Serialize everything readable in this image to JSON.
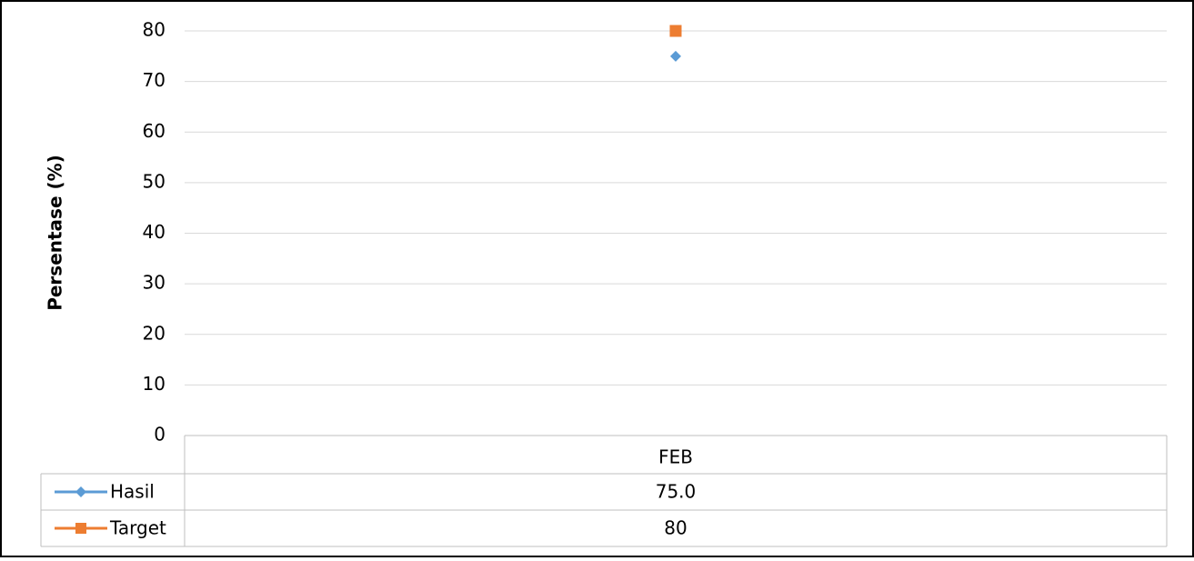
{
  "chart_data": {
    "type": "line",
    "y_label": "Persentase (%)",
    "categories": [
      "FEB"
    ],
    "series": [
      {
        "name": "Hasil",
        "color": "#5b9bd5",
        "marker": "diamond",
        "values": [
          75
        ],
        "value_labels": [
          "75.0"
        ]
      },
      {
        "name": "Target",
        "color": "#ed7d31",
        "marker": "square",
        "values": [
          80
        ]
      }
    ],
    "ylim": [
      0,
      80
    ],
    "yticks": [
      0,
      10,
      20,
      30,
      40,
      50,
      60,
      70,
      80
    ],
    "grid": true,
    "data_table": true
  }
}
